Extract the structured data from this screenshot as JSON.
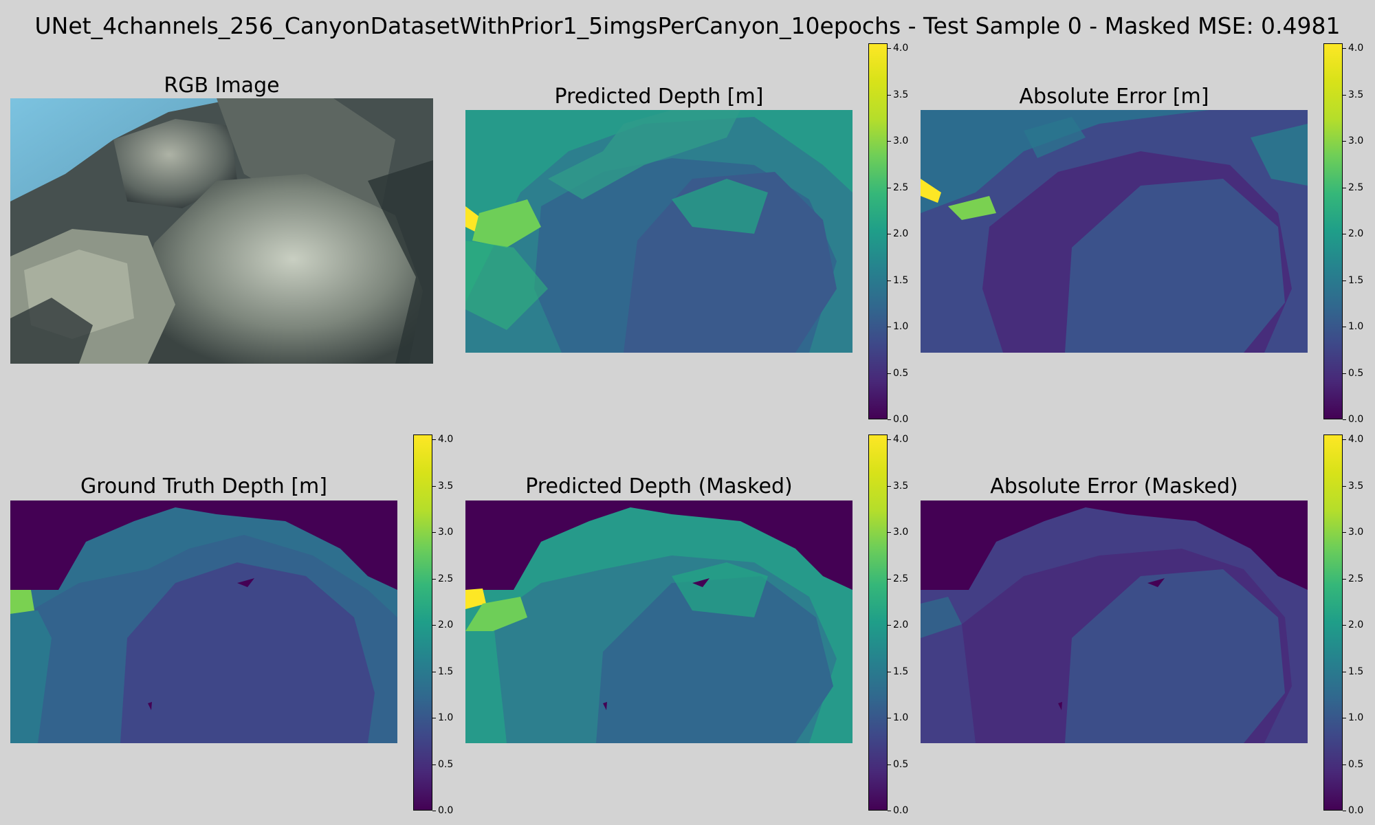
{
  "figure": {
    "suptitle": "UNet_4channels_256_CanyonDatasetWithPrior1_5imgsPerCanyon_10epochs - Test Sample 0 - Masked MSE: 0.4981"
  },
  "panels": {
    "rgb": {
      "title": "RGB Image"
    },
    "pred": {
      "title": "Predicted Depth [m]"
    },
    "err": {
      "title": "Absolute Error [m]"
    },
    "gt": {
      "title": "Ground Truth Depth [m]"
    },
    "pred_masked": {
      "title": "Predicted Depth (Masked)"
    },
    "err_masked": {
      "title": "Absolute Error (Masked)"
    }
  },
  "colorbar": {
    "colormap": "viridis",
    "range": [
      0.0,
      4.05
    ],
    "ticks": [
      "0.0",
      "0.5",
      "1.0",
      "1.5",
      "2.0",
      "2.5",
      "3.0",
      "3.5",
      "4.0"
    ]
  },
  "colors": {
    "background": "#d3d3d3",
    "viridis_low": "#440154",
    "viridis_high": "#fde725"
  }
}
